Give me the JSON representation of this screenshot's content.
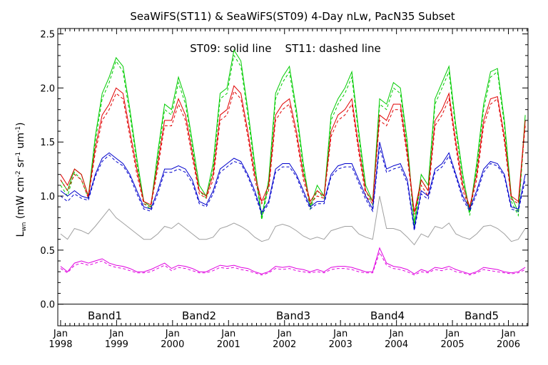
{
  "chart_data": {
    "type": "line",
    "title": "SeaWiFS(ST11) & SeaWiFS(ST09) 4-Day nLw, PacN35 Subset",
    "annotation": "ST09: solid line    ST11: dashed line",
    "ylabel": "L_wn (mW cm^-2 sr^-1 um^-1)",
    "ylabel_main": "L",
    "ylabel_sub": "wn",
    "ylabel_rest": " (mW cm",
    "ylabel_exp1": "-2",
    "ylabel_sr": " sr",
    "ylabel_exp2": "-1",
    "ylabel_um": " um",
    "ylabel_exp3": "-1",
    "ylabel_close": ")",
    "ylim": [
      -0.2,
      2.55
    ],
    "xlim": [
      1997.95,
      2006.35
    ],
    "yticks": [
      "0.0",
      "0.5",
      "1.0",
      "1.5",
      "2.0",
      "2.5"
    ],
    "ytick_values": [
      0.0,
      0.5,
      1.0,
      1.5,
      2.0,
      2.5
    ],
    "xticks": [
      {
        "month": "Jan",
        "year": "1998",
        "value": 1998
      },
      {
        "month": "Jan",
        "year": "1999",
        "value": 1999
      },
      {
        "month": "Jan",
        "year": "2000",
        "value": 2000
      },
      {
        "month": "Jan",
        "year": "2001",
        "value": 2001
      },
      {
        "month": "Jan",
        "year": "2002",
        "value": 2002
      },
      {
        "month": "Jan",
        "year": "2003",
        "value": 2003
      },
      {
        "month": "Jan",
        "year": "2004",
        "value": 2004
      },
      {
        "month": "Jan",
        "year": "2005",
        "value": 2005
      },
      {
        "month": "Jan",
        "year": "2006",
        "value": 2006
      }
    ],
    "grid": false,
    "zero_line": true,
    "legend_placement": "bottom-inside",
    "series": [
      {
        "name": "Band1",
        "color": "#00cc00",
        "solid": [
          1.15,
          1.05,
          1.25,
          1.2,
          1.0,
          1.55,
          1.95,
          2.1,
          2.28,
          2.2,
          1.8,
          1.35,
          0.95,
          0.9,
          1.4,
          1.85,
          1.8,
          2.1,
          1.9,
          1.5,
          1.1,
          1.0,
          1.3,
          1.95,
          2.0,
          2.35,
          2.25,
          1.8,
          1.3,
          0.8,
          1.15,
          1.95,
          2.1,
          2.2,
          1.8,
          1.3,
          0.9,
          1.1,
          1.0,
          1.75,
          1.9,
          2.0,
          2.15,
          1.6,
          1.1,
          0.95,
          1.9,
          1.85,
          2.05,
          2.0,
          1.5,
          0.75,
          1.2,
          1.1,
          1.9,
          2.05,
          2.2,
          1.65,
          1.2,
          0.85,
          1.3,
          1.85,
          2.15,
          2.18,
          1.7,
          1.0,
          0.85,
          1.75
        ],
        "dashed": [
          1.1,
          1.0,
          1.22,
          1.15,
          0.98,
          1.5,
          1.9,
          2.05,
          2.25,
          2.15,
          1.75,
          1.3,
          0.93,
          0.88,
          1.35,
          1.8,
          1.75,
          2.05,
          1.85,
          1.45,
          1.05,
          0.98,
          1.25,
          1.9,
          1.95,
          2.3,
          2.2,
          1.75,
          1.25,
          0.78,
          1.1,
          1.9,
          2.05,
          2.15,
          1.75,
          1.25,
          0.88,
          1.05,
          0.98,
          1.7,
          1.85,
          1.95,
          2.1,
          1.55,
          1.05,
          0.92,
          1.85,
          1.8,
          2.0,
          1.95,
          1.45,
          0.72,
          1.15,
          1.05,
          1.85,
          2.0,
          2.15,
          1.6,
          1.15,
          0.82,
          1.25,
          1.8,
          2.1,
          2.15,
          1.65,
          0.95,
          0.82,
          1.7
        ]
      },
      {
        "name": "Band2",
        "color": "#e00000",
        "solid": [
          1.2,
          1.1,
          1.25,
          1.2,
          1.0,
          1.45,
          1.75,
          1.85,
          2.0,
          1.95,
          1.6,
          1.25,
          0.95,
          0.92,
          1.3,
          1.7,
          1.7,
          1.9,
          1.75,
          1.4,
          1.05,
          1.0,
          1.2,
          1.75,
          1.8,
          2.02,
          1.95,
          1.6,
          1.2,
          0.95,
          1.1,
          1.75,
          1.85,
          1.9,
          1.6,
          1.2,
          0.95,
          1.05,
          1.0,
          1.6,
          1.75,
          1.8,
          1.9,
          1.45,
          1.05,
          0.95,
          1.75,
          1.7,
          1.85,
          1.85,
          1.4,
          0.85,
          1.15,
          1.05,
          1.7,
          1.8,
          1.95,
          1.5,
          1.1,
          0.9,
          1.2,
          1.7,
          1.9,
          1.92,
          1.55,
          1.0,
          0.95,
          1.7
        ],
        "dashed": [
          1.15,
          1.05,
          1.2,
          1.15,
          0.98,
          1.4,
          1.7,
          1.8,
          1.95,
          1.9,
          1.55,
          1.2,
          0.93,
          0.9,
          1.25,
          1.65,
          1.65,
          1.85,
          1.7,
          1.35,
          1.02,
          0.98,
          1.15,
          1.7,
          1.75,
          1.97,
          1.9,
          1.55,
          1.15,
          0.93,
          1.05,
          1.7,
          1.8,
          1.85,
          1.55,
          1.15,
          0.93,
          1.0,
          0.98,
          1.55,
          1.7,
          1.75,
          1.85,
          1.4,
          1.0,
          0.93,
          1.7,
          1.65,
          1.8,
          1.8,
          1.35,
          0.83,
          1.1,
          1.0,
          1.65,
          1.75,
          1.9,
          1.45,
          1.05,
          0.88,
          1.15,
          1.65,
          1.85,
          1.9,
          1.5,
          0.97,
          0.93,
          1.65
        ]
      },
      {
        "name": "Band3",
        "color": "#0000cc",
        "solid": [
          1.05,
          1.0,
          1.05,
          1.0,
          0.98,
          1.2,
          1.35,
          1.4,
          1.35,
          1.3,
          1.2,
          1.05,
          0.9,
          0.88,
          1.05,
          1.25,
          1.25,
          1.28,
          1.25,
          1.15,
          0.95,
          0.92,
          1.05,
          1.25,
          1.3,
          1.35,
          1.32,
          1.2,
          1.05,
          0.85,
          0.95,
          1.25,
          1.3,
          1.3,
          1.2,
          1.05,
          0.9,
          0.95,
          0.95,
          1.2,
          1.28,
          1.3,
          1.3,
          1.15,
          1.0,
          0.88,
          1.5,
          1.25,
          1.28,
          1.3,
          1.15,
          0.7,
          1.05,
          1.0,
          1.25,
          1.3,
          1.4,
          1.2,
          1.0,
          0.88,
          1.05,
          1.25,
          1.32,
          1.3,
          1.2,
          0.9,
          0.88,
          1.2
        ],
        "dashed": [
          1.0,
          0.95,
          1.02,
          0.98,
          0.96,
          1.18,
          1.32,
          1.38,
          1.32,
          1.28,
          1.18,
          1.02,
          0.88,
          0.86,
          1.02,
          1.22,
          1.22,
          1.25,
          1.22,
          1.12,
          0.93,
          0.9,
          1.02,
          1.22,
          1.27,
          1.32,
          1.3,
          1.18,
          1.02,
          0.83,
          0.93,
          1.22,
          1.27,
          1.27,
          1.18,
          1.02,
          0.88,
          0.93,
          0.93,
          1.18,
          1.25,
          1.27,
          1.27,
          1.12,
          0.97,
          0.86,
          1.45,
          1.22,
          1.25,
          1.27,
          1.12,
          0.68,
          1.02,
          0.97,
          1.22,
          1.27,
          1.37,
          1.18,
          0.97,
          0.86,
          1.02,
          1.22,
          1.3,
          1.28,
          1.18,
          0.88,
          0.86,
          1.15
        ]
      },
      {
        "name": "Band4",
        "color": "#a0a0a0",
        "solid": [
          0.65,
          0.6,
          0.7,
          0.68,
          0.65,
          0.72,
          0.8,
          0.88,
          0.8,
          0.75,
          0.7,
          0.65,
          0.6,
          0.6,
          0.65,
          0.72,
          0.7,
          0.75,
          0.7,
          0.65,
          0.6,
          0.6,
          0.62,
          0.7,
          0.72,
          0.75,
          0.72,
          0.68,
          0.62,
          0.58,
          0.6,
          0.72,
          0.74,
          0.72,
          0.68,
          0.63,
          0.6,
          0.62,
          0.6,
          0.68,
          0.7,
          0.72,
          0.72,
          0.65,
          0.62,
          0.6,
          1.0,
          0.7,
          0.7,
          0.68,
          0.62,
          0.55,
          0.65,
          0.62,
          0.72,
          0.7,
          0.75,
          0.65,
          0.62,
          0.6,
          0.65,
          0.72,
          0.73,
          0.7,
          0.65,
          0.58,
          0.6,
          0.7
        ],
        "dashed": null
      },
      {
        "name": "Band5",
        "color": "#e000e0",
        "solid": [
          0.35,
          0.3,
          0.38,
          0.4,
          0.38,
          0.4,
          0.42,
          0.38,
          0.36,
          0.35,
          0.33,
          0.3,
          0.3,
          0.32,
          0.35,
          0.38,
          0.33,
          0.36,
          0.35,
          0.33,
          0.3,
          0.3,
          0.33,
          0.36,
          0.35,
          0.36,
          0.34,
          0.33,
          0.3,
          0.28,
          0.3,
          0.35,
          0.34,
          0.35,
          0.33,
          0.32,
          0.3,
          0.32,
          0.3,
          0.34,
          0.35,
          0.35,
          0.34,
          0.32,
          0.3,
          0.3,
          0.52,
          0.38,
          0.35,
          0.34,
          0.32,
          0.28,
          0.32,
          0.3,
          0.34,
          0.33,
          0.35,
          0.32,
          0.3,
          0.28,
          0.3,
          0.34,
          0.33,
          0.32,
          0.3,
          0.29,
          0.3,
          0.34
        ],
        "dashed": [
          0.33,
          0.29,
          0.36,
          0.38,
          0.36,
          0.38,
          0.4,
          0.36,
          0.34,
          0.33,
          0.31,
          0.29,
          0.29,
          0.3,
          0.33,
          0.36,
          0.31,
          0.34,
          0.33,
          0.31,
          0.29,
          0.29,
          0.31,
          0.34,
          0.33,
          0.34,
          0.32,
          0.31,
          0.29,
          0.27,
          0.29,
          0.33,
          0.32,
          0.33,
          0.31,
          0.3,
          0.29,
          0.3,
          0.29,
          0.32,
          0.33,
          0.33,
          0.32,
          0.3,
          0.29,
          0.29,
          0.48,
          0.36,
          0.33,
          0.32,
          0.3,
          0.27,
          0.3,
          0.29,
          0.32,
          0.31,
          0.33,
          0.3,
          0.29,
          0.27,
          0.29,
          0.32,
          0.31,
          0.3,
          0.29,
          0.28,
          0.29,
          0.32
        ]
      }
    ]
  }
}
